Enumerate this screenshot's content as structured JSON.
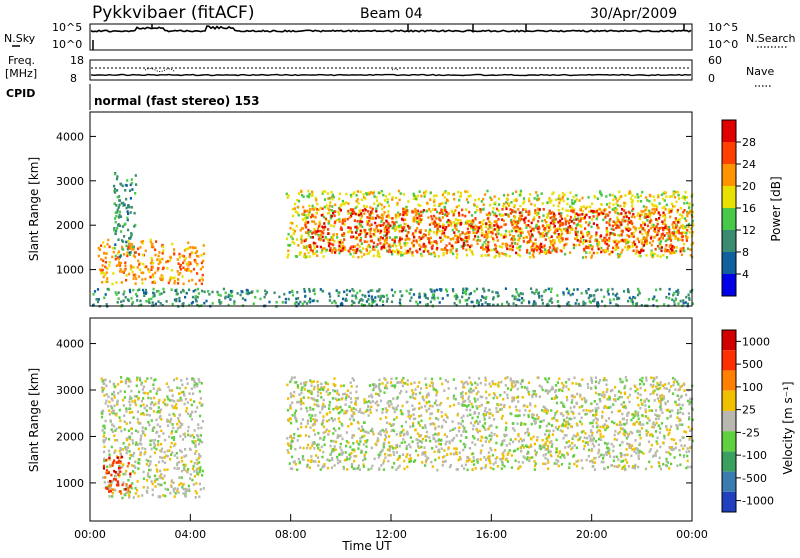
{
  "header": {
    "station": "Pykkvibaer (fitACF)",
    "beam": "Beam 04",
    "date": "30/Apr/2009"
  },
  "noise_panel": {
    "left_label": "N.Sky",
    "right_label": "N.Search",
    "left_ticks": [
      "10^5",
      "10^0"
    ],
    "right_ticks": [
      "10^5",
      "10^0"
    ]
  },
  "freq_panel": {
    "left_label_1": "Freq.",
    "left_label_2": "[MHz]",
    "right_label": "Nave",
    "left_ticks": [
      "18",
      "8"
    ],
    "right_ticks": [
      "60",
      "0"
    ]
  },
  "cpid": {
    "label": "CPID",
    "text": "normal (fast stereo) 153"
  },
  "chart_data": [
    {
      "type": "heatmap",
      "name": "Power",
      "ylabel": "Slant Range [km]",
      "xlabel": "",
      "ylim": [
        180,
        4550
      ],
      "yticks": [
        "1000",
        "2000",
        "3000",
        "4000"
      ],
      "xticks": [],
      "colorbar_label": "Power [dB]",
      "colorbar_ticks": [
        "4",
        "8",
        "12",
        "16",
        "20",
        "24",
        "28"
      ],
      "colors": [
        "#0000e6",
        "#1060a0",
        "#3a8c70",
        "#48c848",
        "#e8e000",
        "#ff9400",
        "#ff4000",
        "#e00000"
      ],
      "features": [
        {
          "t_start": 0.9,
          "t_end": 1.8,
          "range_start": 1300,
          "range_end": 3200,
          "level": 2
        },
        {
          "t_start": 0.3,
          "t_end": 4.5,
          "range_start": 700,
          "range_end": 1700,
          "level": 5
        },
        {
          "t_start": 7.8,
          "t_end": 24.0,
          "range_start": 1300,
          "range_end": 2800,
          "level": 4
        },
        {
          "t_start": 8.5,
          "t_end": 23.8,
          "range_start": 1400,
          "range_end": 2400,
          "level": 6
        },
        {
          "t_start": 0.0,
          "t_end": 24.0,
          "range_start": 200,
          "range_end": 600,
          "level": 2
        }
      ]
    },
    {
      "type": "heatmap",
      "name": "Velocity",
      "ylabel": "Slant Range [km]",
      "xlabel": "Time UT",
      "ylim": [
        180,
        4550
      ],
      "yticks": [
        "1000",
        "2000",
        "3000",
        "4000"
      ],
      "xticks": [
        "00:00",
        "04:00",
        "08:00",
        "12:00",
        "16:00",
        "20:00",
        "00:00"
      ],
      "xlim": [
        0,
        24
      ],
      "colorbar_label": "Velocity [m s⁻¹]",
      "colorbar_ticks": [
        "1000",
        "500",
        "100",
        "25",
        "-25",
        "-100",
        "-500",
        "-1000"
      ],
      "colors": [
        "#2040c0",
        "#3a7cb0",
        "#3aa060",
        "#60d040",
        "#b8b8b0",
        "#f0c000",
        "#ff8000",
        "#ff3000",
        "#d00000"
      ],
      "features": [
        {
          "t_start": 0.4,
          "t_end": 4.5,
          "range_start": 700,
          "range_end": 3300,
          "level": 4
        },
        {
          "t_start": 7.8,
          "t_end": 24.0,
          "range_start": 1300,
          "range_end": 3300,
          "level": 4
        },
        {
          "t_start": 0.5,
          "t_end": 1.6,
          "range_start": 800,
          "range_end": 1600,
          "level": 7
        }
      ]
    }
  ]
}
